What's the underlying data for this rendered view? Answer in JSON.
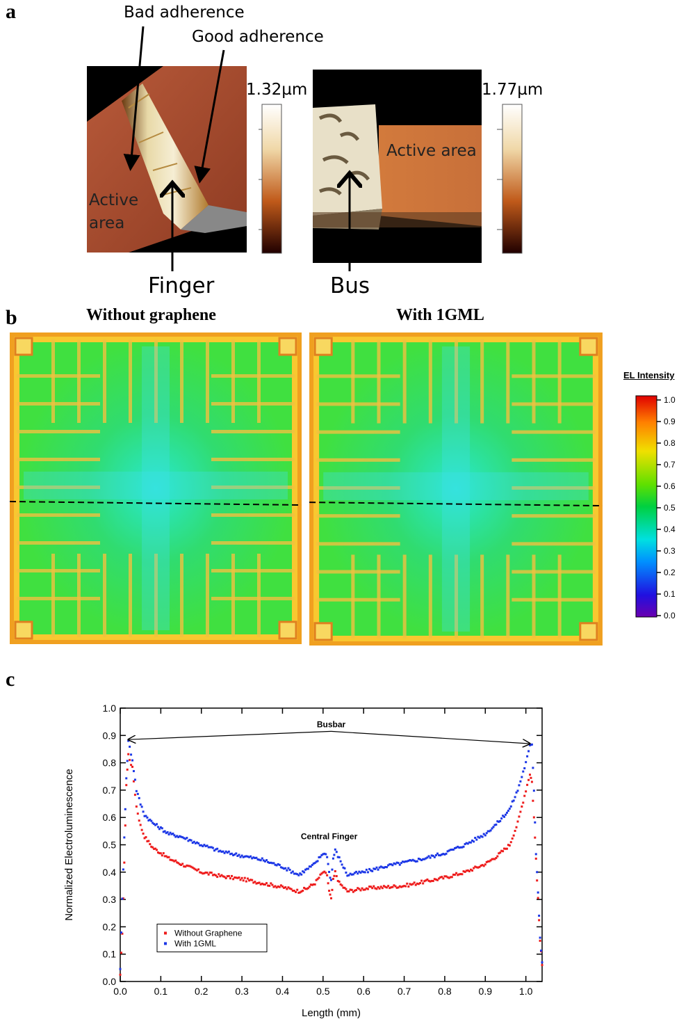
{
  "panel_a": {
    "letter": "a",
    "label_bad": "Bad adherence",
    "label_good": "Good adherence",
    "label_active_1": "Active",
    "label_active_2": "area",
    "label_active_right": "Active area",
    "scale_left": "1.32µm",
    "scale_right": "1.77µm",
    "label_finger": "Finger",
    "label_bus": "Bus"
  },
  "panel_b": {
    "letter": "b",
    "title_left": "Without graphene",
    "title_right": "With 1GML",
    "colorbar_title": "EL Intensity",
    "colorbar_ticks": [
      "1.0",
      "0.9",
      "0.8",
      "0.7",
      "0.6",
      "0.5",
      "0.4",
      "0.3",
      "0.2",
      "0.1",
      "0.0"
    ]
  },
  "panel_c": {
    "letter": "c",
    "annot_busbar": "Busbar",
    "annot_central": "Central Finger"
  },
  "chart_data": {
    "type": "scatter",
    "xlabel": "Length (mm)",
    "ylabel": "Normalized Electroluminescence",
    "xlim": [
      0.0,
      1.04
    ],
    "ylim": [
      0.0,
      1.0
    ],
    "xticks": [
      "0.0",
      "0.1",
      "0.2",
      "0.3",
      "0.4",
      "0.5",
      "0.6",
      "0.7",
      "0.8",
      "0.9",
      "1.0"
    ],
    "yticks": [
      "0.0",
      "0.1",
      "0.2",
      "0.3",
      "0.4",
      "0.5",
      "0.6",
      "0.7",
      "0.8",
      "0.9",
      "1.0"
    ],
    "legend_position": "bottom-left",
    "series": [
      {
        "name": "Without Graphene",
        "color": "#ee1c1c",
        "x": [
          0.0,
          0.005,
          0.01,
          0.015,
          0.02,
          0.03,
          0.04,
          0.05,
          0.06,
          0.08,
          0.1,
          0.12,
          0.15,
          0.2,
          0.25,
          0.3,
          0.35,
          0.4,
          0.44,
          0.46,
          0.48,
          0.5,
          0.51,
          0.515,
          0.52,
          0.525,
          0.53,
          0.54,
          0.56,
          0.6,
          0.65,
          0.7,
          0.75,
          0.8,
          0.85,
          0.9,
          0.93,
          0.96,
          0.98,
          1.0,
          1.01,
          1.015,
          1.02,
          1.025,
          1.03,
          1.035,
          1.04
        ],
        "y": [
          0.02,
          0.18,
          0.43,
          0.72,
          0.83,
          0.78,
          0.64,
          0.57,
          0.53,
          0.49,
          0.47,
          0.45,
          0.43,
          0.4,
          0.385,
          0.375,
          0.36,
          0.345,
          0.33,
          0.34,
          0.36,
          0.4,
          0.39,
          0.33,
          0.3,
          0.37,
          0.4,
          0.36,
          0.33,
          0.34,
          0.345,
          0.35,
          0.365,
          0.38,
          0.4,
          0.43,
          0.46,
          0.5,
          0.58,
          0.7,
          0.76,
          0.73,
          0.6,
          0.45,
          0.3,
          0.15,
          0.06
        ]
      },
      {
        "name": "With 1GML",
        "color": "#1c37e6",
        "x": [
          0.0,
          0.005,
          0.01,
          0.015,
          0.02,
          0.03,
          0.04,
          0.05,
          0.06,
          0.08,
          0.1,
          0.12,
          0.15,
          0.2,
          0.25,
          0.3,
          0.35,
          0.4,
          0.44,
          0.46,
          0.48,
          0.5,
          0.51,
          0.515,
          0.52,
          0.525,
          0.53,
          0.54,
          0.56,
          0.6,
          0.65,
          0.7,
          0.75,
          0.8,
          0.85,
          0.9,
          0.93,
          0.96,
          0.98,
          1.0,
          1.01,
          1.015,
          1.02,
          1.025,
          1.03,
          1.035,
          1.04
        ],
        "y": [
          0.05,
          0.3,
          0.53,
          0.74,
          0.88,
          0.81,
          0.7,
          0.65,
          0.61,
          0.58,
          0.56,
          0.54,
          0.53,
          0.5,
          0.475,
          0.46,
          0.445,
          0.42,
          0.39,
          0.41,
          0.43,
          0.47,
          0.46,
          0.4,
          0.37,
          0.45,
          0.48,
          0.45,
          0.39,
          0.4,
          0.42,
          0.435,
          0.45,
          0.47,
          0.5,
          0.54,
          0.58,
          0.63,
          0.7,
          0.8,
          0.86,
          0.87,
          0.7,
          0.47,
          0.33,
          0.16,
          0.07
        ]
      }
    ]
  }
}
